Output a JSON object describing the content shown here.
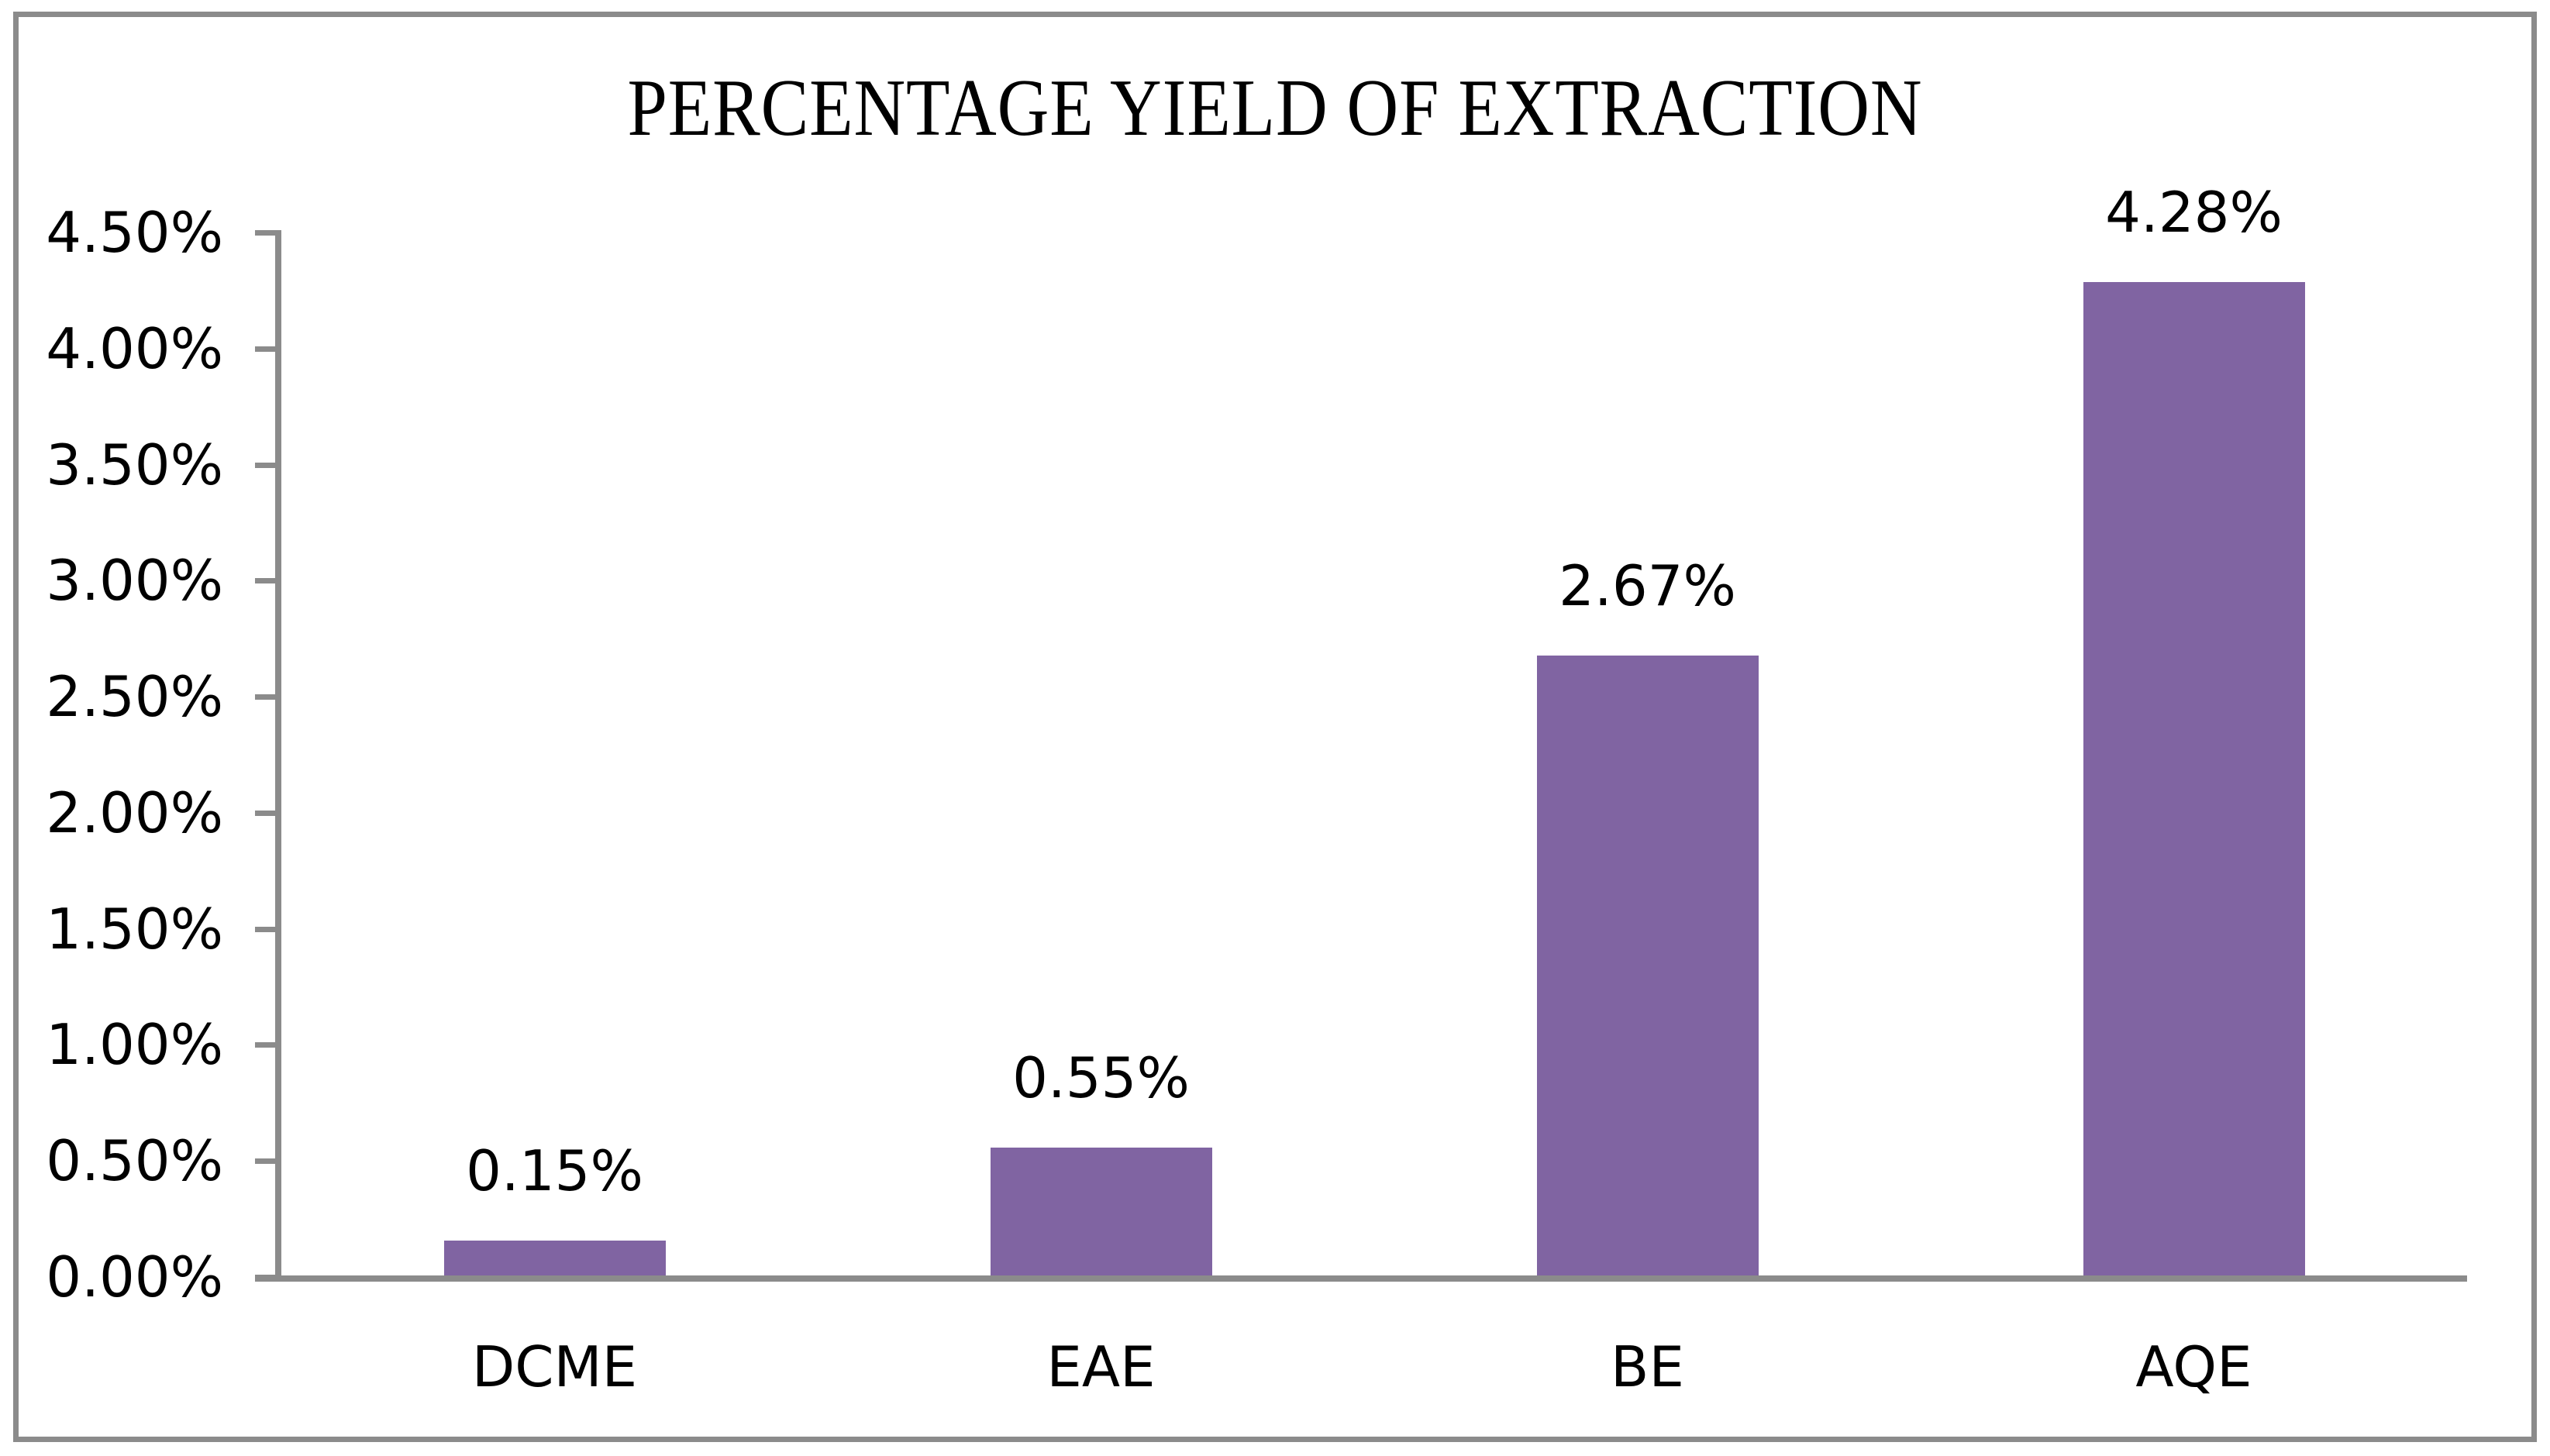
{
  "chart_data": {
    "type": "bar",
    "title": "PERCENTAGE YIELD OF EXTRACTION",
    "categories": [
      "DCME",
      "EAE",
      "BE",
      "AQE"
    ],
    "values": [
      0.15,
      0.55,
      2.67,
      4.28
    ],
    "data_labels": [
      "0.15%",
      "0.55%",
      "2.67%",
      "4.28%"
    ],
    "xlabel": "",
    "ylabel": "",
    "ylim": [
      0,
      4.5
    ],
    "ytick_step": 0.5,
    "ytick_labels": [
      "0.00%",
      "0.50%",
      "1.00%",
      "1.50%",
      "2.00%",
      "2.50%",
      "3.00%",
      "3.50%",
      "4.00%",
      "4.50%"
    ],
    "grid": false,
    "legend": "none",
    "colors": {
      "bar": "#8064A2",
      "axis": "#8B8B8B",
      "frame": "#8B8B8B",
      "text": "#000000",
      "background": "#FFFFFF"
    }
  }
}
